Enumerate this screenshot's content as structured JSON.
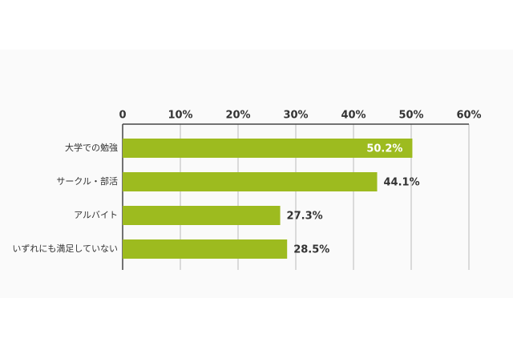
{
  "chart_data": {
    "type": "barh",
    "categories": [
      "大学での勉強",
      "サークル・部活",
      "アルバイト",
      "いずれにも満足していない"
    ],
    "values": [
      50.2,
      44.1,
      27.3,
      28.5
    ],
    "value_labels": [
      "50.2%",
      "44.1%",
      "27.3%",
      "28.5%"
    ],
    "color": "#9dbb1f",
    "xlim": [
      0,
      60
    ],
    "xticks": [
      0,
      {
        "value": 10,
        "label": "10%"
      },
      {
        "value": 20,
        "label": "20%"
      },
      {
        "value": 30,
        "label": "30%"
      },
      {
        "value": 40,
        "label": "40%"
      },
      {
        "value": 50,
        "label": "50%"
      },
      {
        "value": 60,
        "label": "60%"
      }
    ],
    "grid": true
  }
}
